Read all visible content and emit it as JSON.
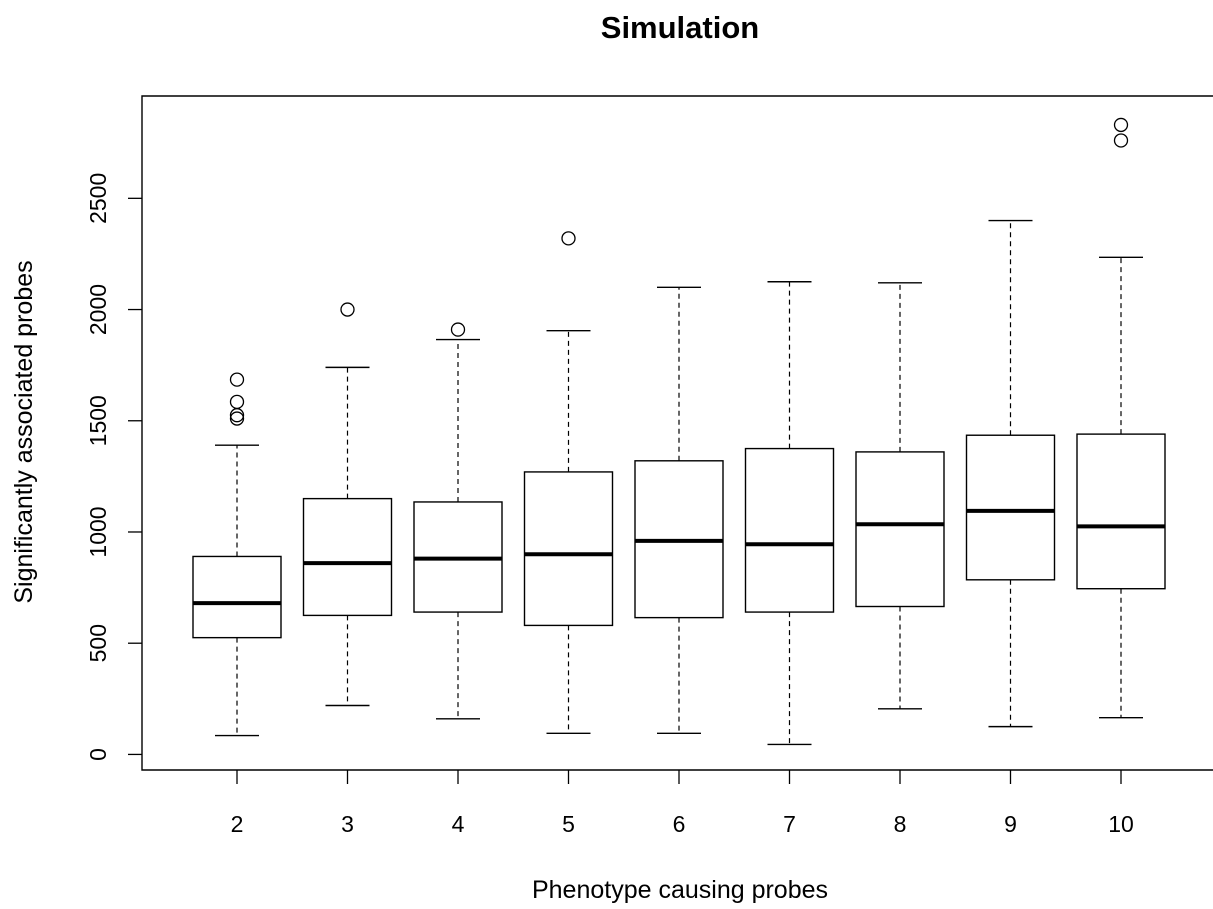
{
  "chart_data": {
    "type": "boxplot",
    "title": "Simulation",
    "xlabel": "Phenotype causing probes",
    "ylabel": "Significantly associated probes",
    "categories": [
      "2",
      "3",
      "4",
      "5",
      "6",
      "7",
      "8",
      "9",
      "10"
    ],
    "y_ticks": [
      0,
      500,
      1000,
      1500,
      2000,
      2500
    ],
    "ylim": [
      -70,
      2960
    ],
    "grid": false,
    "legend": "none",
    "boxes": [
      {
        "category": "2",
        "whisker_low": 85,
        "q1": 525,
        "median": 680,
        "q3": 890,
        "whisker_high": 1390,
        "outliers": [
          1510,
          1525,
          1585,
          1685
        ]
      },
      {
        "category": "3",
        "whisker_low": 220,
        "q1": 625,
        "median": 860,
        "q3": 1150,
        "whisker_high": 1740,
        "outliers": [
          2000
        ]
      },
      {
        "category": "4",
        "whisker_low": 160,
        "q1": 640,
        "median": 880,
        "q3": 1135,
        "whisker_high": 1865,
        "outliers": [
          1910
        ]
      },
      {
        "category": "5",
        "whisker_low": 95,
        "q1": 580,
        "median": 900,
        "q3": 1270,
        "whisker_high": 1905,
        "outliers": [
          2320
        ]
      },
      {
        "category": "6",
        "whisker_low": 95,
        "q1": 615,
        "median": 960,
        "q3": 1320,
        "whisker_high": 2100,
        "outliers": []
      },
      {
        "category": "7",
        "whisker_low": 45,
        "q1": 640,
        "median": 945,
        "q3": 1375,
        "whisker_high": 2125,
        "outliers": []
      },
      {
        "category": "8",
        "whisker_low": 205,
        "q1": 665,
        "median": 1035,
        "q3": 1360,
        "whisker_high": 2120,
        "outliers": []
      },
      {
        "category": "9",
        "whisker_low": 125,
        "q1": 785,
        "median": 1095,
        "q3": 1435,
        "whisker_high": 2400,
        "outliers": []
      },
      {
        "category": "10",
        "whisker_low": 165,
        "q1": 745,
        "median": 1025,
        "q3": 1440,
        "whisker_high": 2235,
        "outliers": [
          2760,
          2830
        ]
      }
    ],
    "colors": {
      "box_stroke": "#000000",
      "median": "#000000",
      "whisker": "#000000",
      "background": "#ffffff"
    }
  }
}
